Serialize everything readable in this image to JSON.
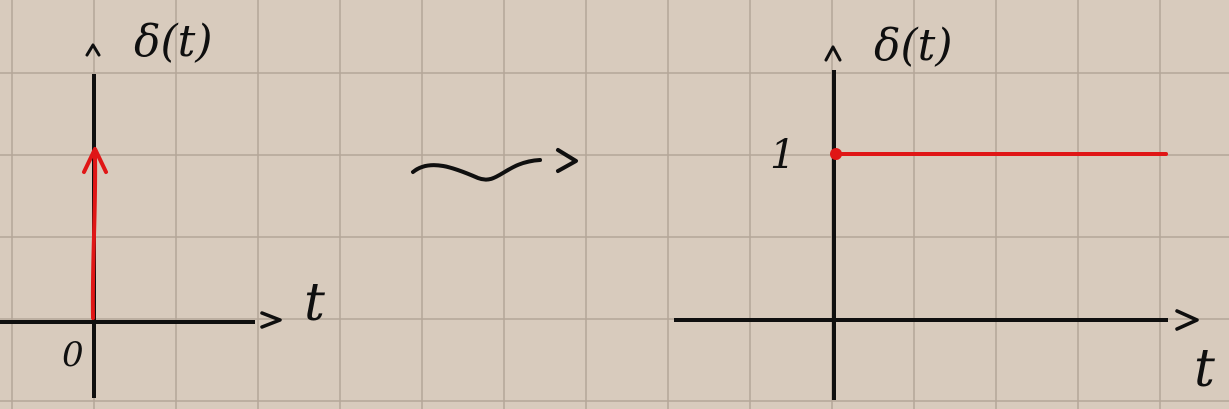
{
  "colors": {
    "paper": "#d8cbbd",
    "grid": "#b3a698",
    "ink": "#0f0f0f",
    "accent": "#e01616"
  },
  "left_panel": {
    "ylabel": "δ(t)",
    "xlabel": "t",
    "origin_label": "0"
  },
  "transform_arrow": "~>",
  "right_panel": {
    "ylabel": "δ(t)",
    "xlabel": "t",
    "level_label": "1",
    "level_value": 1
  }
}
